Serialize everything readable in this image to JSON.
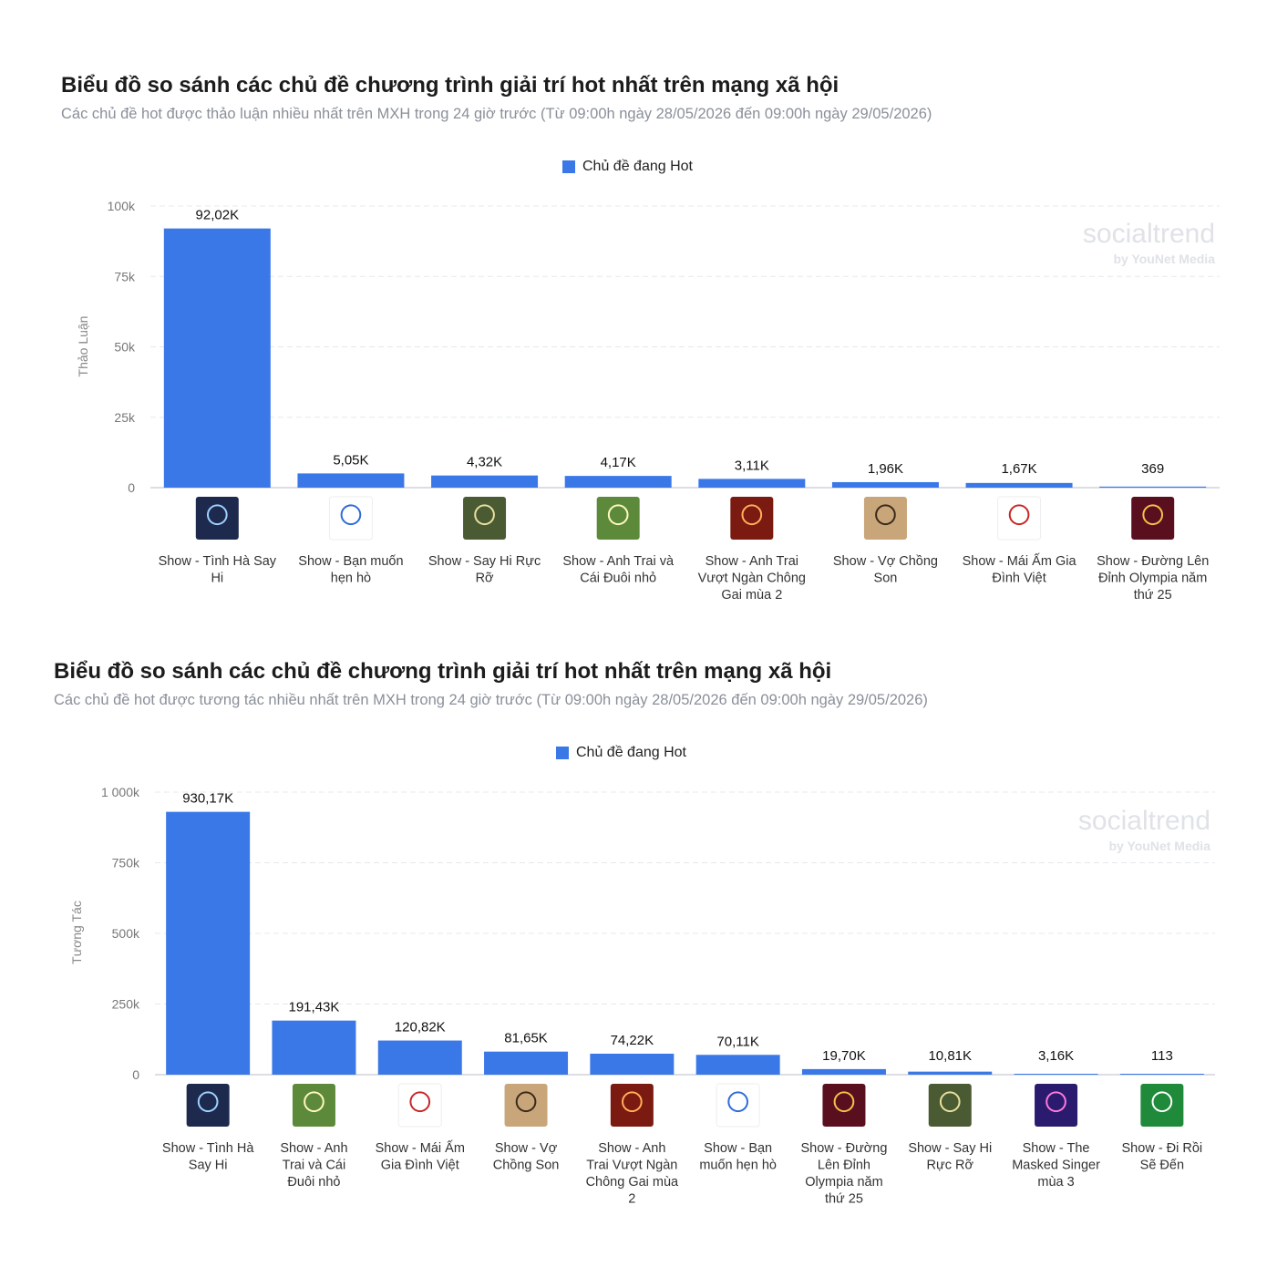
{
  "chart_data": [
    {
      "type": "bar",
      "title": "Biểu đồ so sánh các chủ đề chương trình giải trí hot nhất trên mạng xã hội",
      "subtitle": "Các chủ đề hot được thảo luận nhiều nhất trên MXH trong 24 giờ trước (Từ 09:00h ngày 28/05/2026 đến 09:00h ngày 29/05/2026)",
      "legend": "Chủ đề đang Hot",
      "ylabel": "Thảo Luận",
      "ylim": [
        0,
        100000
      ],
      "yticks": [
        0,
        25000,
        50000,
        75000,
        100000
      ],
      "ytick_labels": [
        "0",
        "25k",
        "50k",
        "75k",
        "100k"
      ],
      "watermark": [
        "socialtrend",
        "by YouNet Media"
      ],
      "color": "#3b78e7",
      "categories": [
        [
          "Show - Tình Hà Say",
          "Hi"
        ],
        [
          "Show - Bạn muốn",
          "hẹn hò"
        ],
        [
          "Show - Say Hi Rực",
          "Rỡ"
        ],
        [
          "Show - Anh Trai và",
          "Cái Đuôi nhỏ"
        ],
        [
          "Show - Anh Trai",
          "Vượt Ngàn Chông",
          "Gai mùa 2"
        ],
        [
          "Show - Vợ Chồng",
          "Son"
        ],
        [
          "Show - Mái Ấm Gia",
          "Đình Việt"
        ],
        [
          "Show - Đường Lên",
          "Đỉnh Olympia năm",
          "thứ 25"
        ]
      ],
      "icons": [
        "tinh-ha-say-hi-logo-icon",
        "ban-muon-hen-ho-logo-icon",
        "say-hi-ruc-ro-logo-icon",
        "anh-trai-cai-duoi-nho-logo-icon",
        "anh-trai-vuot-ngan-chong-gai-logo-icon",
        "vo-chong-son-logo-icon",
        "mai-am-gia-dinh-viet-logo-icon",
        "duong-len-dinh-olympia-logo-icon"
      ],
      "values": [
        92020,
        5050,
        4320,
        4170,
        3110,
        1960,
        1670,
        369
      ],
      "data_labels": [
        "92,02K",
        "5,05K",
        "4,32K",
        "4,17K",
        "3,11K",
        "1,96K",
        "1,67K",
        "369"
      ]
    },
    {
      "type": "bar",
      "title": "Biểu đồ so sánh các chủ đề chương trình giải trí hot nhất trên mạng xã hội",
      "subtitle": "Các chủ đề hot được tương tác nhiều nhất trên MXH trong 24 giờ trước (Từ 09:00h ngày 28/05/2026 đến 09:00h ngày 29/05/2026)",
      "legend": "Chủ đề đang Hot",
      "ylabel": "Tương Tác",
      "ylim": [
        0,
        1000000
      ],
      "yticks": [
        0,
        250000,
        500000,
        750000,
        1000000
      ],
      "ytick_labels": [
        "0",
        "250k",
        "500k",
        "750k",
        "1 000k"
      ],
      "watermark": [
        "socialtrend",
        "by YouNet Media"
      ],
      "color": "#3b78e7",
      "categories": [
        [
          "Show - Tình Hà",
          "Say Hi"
        ],
        [
          "Show - Anh",
          "Trai và Cái",
          "Đuôi nhỏ"
        ],
        [
          "Show - Mái Ấm",
          "Gia Đình Việt"
        ],
        [
          "Show - Vợ",
          "Chồng Son"
        ],
        [
          "Show - Anh",
          "Trai Vượt Ngàn",
          "Chông Gai mùa",
          "2"
        ],
        [
          "Show - Bạn",
          "muốn hẹn hò"
        ],
        [
          "Show - Đường",
          "Lên Đỉnh",
          "Olympia năm",
          "thứ 25"
        ],
        [
          "Show - Say Hi",
          "Rực Rỡ"
        ],
        [
          "Show - The",
          "Masked Singer",
          "mùa 3"
        ],
        [
          "Show - Đi Rồi",
          "Sẽ Đến"
        ]
      ],
      "icons": [
        "tinh-ha-say-hi-logo-icon",
        "anh-trai-cai-duoi-nho-logo-icon",
        "mai-am-gia-dinh-viet-logo-icon",
        "vo-chong-son-logo-icon",
        "anh-trai-vuot-ngan-chong-gai-logo-icon",
        "ban-muon-hen-ho-logo-icon",
        "duong-len-dinh-olympia-logo-icon",
        "say-hi-ruc-ro-logo-icon",
        "masked-singer-logo-icon",
        "di-roi-se-den-logo-icon"
      ],
      "values": [
        930170,
        191430,
        120820,
        81650,
        74220,
        70110,
        19700,
        10810,
        3160,
        113
      ],
      "data_labels": [
        "930,17K",
        "191,43K",
        "120,82K",
        "81,65K",
        "74,22K",
        "70,11K",
        "19,70K",
        "10,81K",
        "3,16K",
        "113"
      ]
    }
  ]
}
